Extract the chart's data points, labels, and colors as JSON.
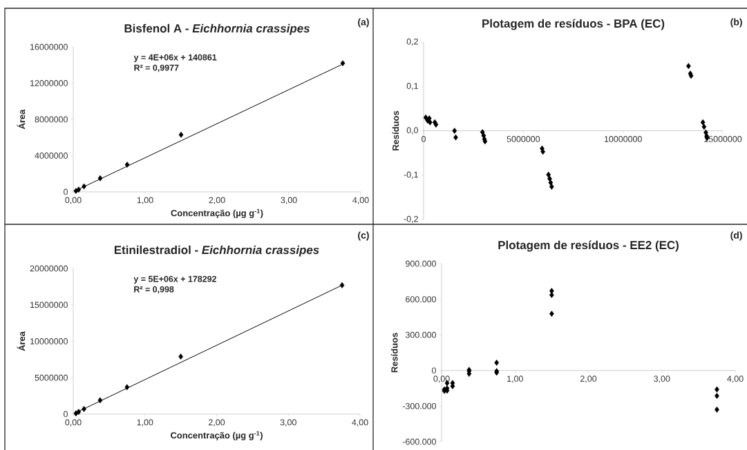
{
  "chart_data": [
    {
      "type": "scatter",
      "title": "Bisfenol A - *Eichhornia crassipes*",
      "xlabel": "Concentração (µg g$^{-1}$)",
      "ylabel": "Área",
      "xlim": [
        0,
        4
      ],
      "ylim": [
        0,
        16000000
      ],
      "xticks": [
        {
          "value": 0,
          "label": "0,00"
        },
        {
          "value": 1,
          "label": "1,00"
        },
        {
          "value": 2,
          "label": "2,00"
        },
        {
          "value": 3,
          "label": "3,00"
        },
        {
          "value": 4,
          "label": "4,00"
        }
      ],
      "yticks": [
        0,
        4000000,
        8000000,
        12000000,
        16000000
      ],
      "annotations": [
        "y = 4E+06x + 140861",
        "R² = 0,9977",
        "(a)"
      ],
      "series": [
        {
          "marker": "diamond",
          "color": "#000000",
          "x": [
            0.0375,
            0.075,
            0.15,
            0.375,
            0.75,
            1.5,
            3.75
          ],
          "values": [
            100000,
            250000,
            600000,
            1500000,
            3000000,
            6300000,
            14200000
          ]
        },
        {
          "type": "line",
          "marker": "none",
          "color": "#000000",
          "x": [
            0.0375,
            3.75
          ],
          "values": [
            150000,
            14100000
          ]
        }
      ]
    },
    {
      "type": "scatter",
      "title": "Plotagem de resíduos - BPA (EC)",
      "ylabel": "Resíduos",
      "xlim": [
        0,
        15000000
      ],
      "ylim": [
        -0.2,
        0.2
      ],
      "xticks": [
        0,
        5000000,
        10000000,
        15000000
      ],
      "yticks": [
        {
          "value": -0.2,
          "label": "-0,2"
        },
        {
          "value": -0.1,
          "label": "-0,1"
        },
        {
          "value": 0,
          "label": "0,0"
        },
        {
          "value": 0.1,
          "label": "0,1"
        },
        {
          "value": 0.2,
          "label": "0,2"
        }
      ],
      "annotations": [
        "(b)"
      ],
      "series": [
        {
          "marker": "diamond",
          "color": "#000000",
          "x": [
            107000,
            203000,
            287000,
            323000,
            562000,
            621000,
            1550000,
            1610000,
            2950000,
            3010000,
            3050000,
            3080000,
            5940000,
            5980000,
            6260000,
            6320000,
            6370000,
            6420000,
            13280000,
            13370000,
            13410000,
            14000000,
            14060000,
            14150000,
            14190000,
            14210000
          ],
          "values": [
            0.03,
            0.023,
            0.028,
            0.019,
            0.019,
            0.014,
            0.0,
            -0.015,
            -0.003,
            -0.011,
            -0.019,
            -0.024,
            -0.04,
            -0.047,
            -0.099,
            -0.108,
            -0.117,
            -0.126,
            0.146,
            0.129,
            0.124,
            0.019,
            0.009,
            -0.004,
            -0.012,
            -0.016
          ]
        }
      ]
    },
    {
      "type": "scatter",
      "title": "Etinilestradiol - *Eichhornia crassipes*",
      "xlabel": "Concentração (µg g$^{-1}$)",
      "ylabel": "Área",
      "xlim": [
        0,
        4
      ],
      "ylim": [
        0,
        20000000
      ],
      "xticks": [
        {
          "value": 0,
          "label": "0,00"
        },
        {
          "value": 1,
          "label": "1,00"
        },
        {
          "value": 2,
          "label": "2,00"
        },
        {
          "value": 3,
          "label": "3,00"
        },
        {
          "value": 4,
          "label": "4,00"
        }
      ],
      "yticks": [
        0,
        5000000,
        10000000,
        15000000,
        20000000
      ],
      "annotations": [
        "y = 5E+06x + 178292",
        "R² = 0,998",
        "(c)"
      ],
      "series": [
        {
          "marker": "diamond",
          "color": "#000000",
          "x": [
            0.0375,
            0.075,
            0.15,
            0.375,
            0.75,
            1.5,
            3.75
          ],
          "values": [
            100000,
            300000,
            700000,
            1900000,
            3700000,
            7900000,
            17700000
          ]
        },
        {
          "type": "line",
          "marker": "none",
          "color": "#000000",
          "x": [
            0.0375,
            3.75
          ],
          "values": [
            200000,
            17700000
          ]
        }
      ]
    },
    {
      "type": "scatter",
      "title": "Plotagem de resíduos - EE2 (EC)",
      "ylabel": "Resíduos",
      "xlim": [
        0,
        4
      ],
      "ylim": [
        -600000,
        900000
      ],
      "xticks": [
        {
          "value": 0,
          "label": "0,00"
        },
        {
          "value": 1,
          "label": "1,00"
        },
        {
          "value": 2,
          "label": "2,00"
        },
        {
          "value": 3,
          "label": "3,00"
        },
        {
          "value": 4,
          "label": "4,00"
        }
      ],
      "yticks": [
        {
          "value": -600000,
          "label": "-600.000"
        },
        {
          "value": -300000,
          "label": "-300.000"
        },
        0,
        {
          "value": 300000,
          "label": "300.000"
        },
        {
          "value": 600000,
          "label": "600.000"
        },
        {
          "value": 900000,
          "label": "900.000"
        }
      ],
      "annotations": [
        "(d)"
      ],
      "series": [
        {
          "marker": "diamond",
          "color": "#000000",
          "x": [
            0.0375,
            0.0375,
            0.075,
            0.075,
            0.075,
            0.15,
            0.15,
            0.375,
            0.375,
            0.375,
            0.75,
            0.75,
            0.75,
            1.5,
            1.5,
            1.5,
            3.75,
            3.75,
            3.75
          ],
          "values": [
            -172000,
            -160000,
            -106000,
            -150000,
            -170000,
            -106000,
            -132000,
            5000,
            -5000,
            -28000,
            66000,
            -6000,
            -18000,
            670000,
            636000,
            478000,
            -160000,
            -214000,
            -330000
          ]
        }
      ]
    }
  ]
}
